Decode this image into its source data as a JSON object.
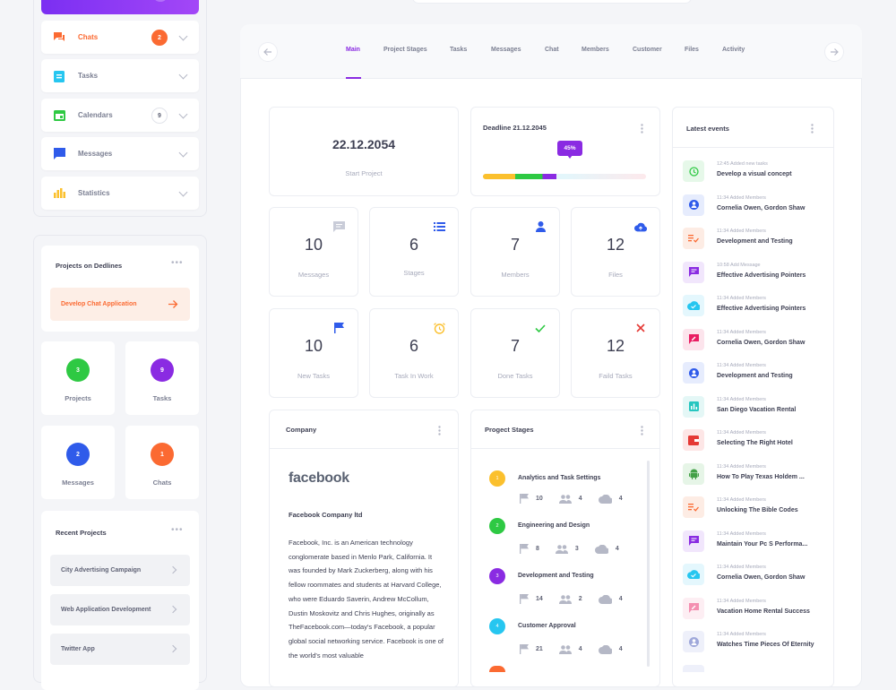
{
  "sidebar": {
    "menu": [
      {
        "label": "Chats",
        "icon": "chat-icon",
        "badge": "2",
        "active": true
      },
      {
        "label": "Tasks",
        "icon": "clipboard-icon"
      },
      {
        "label": "Calendars",
        "icon": "calendar-icon",
        "badge": "9"
      },
      {
        "label": "Messages",
        "icon": "message-icon"
      },
      {
        "label": "Statistics",
        "icon": "bar-chart-icon"
      }
    ],
    "deadlines": {
      "title": "Projects on Dedlines",
      "item": "Develop Chat Application"
    },
    "stats": [
      {
        "label": "Projects",
        "value": "3",
        "color": "#2ec943"
      },
      {
        "label": "Tasks",
        "value": "9",
        "color": "#8a2be2"
      },
      {
        "label": "Messages",
        "value": "2",
        "color": "#2f5bea"
      },
      {
        "label": "Chats",
        "value": "1",
        "color": "#fb6a32"
      }
    ],
    "recent": {
      "title": "Recent Projects",
      "items": [
        "City Advertising Campaign",
        "Web Application Development",
        "Twitter App"
      ]
    }
  },
  "tabs": [
    "Main",
    "Project Stages",
    "Tasks",
    "Messages",
    "Chat",
    "Members",
    "Customer",
    "Files",
    "Activity"
  ],
  "start": {
    "date": "22.12.2054",
    "label": "Start Project"
  },
  "deadline": {
    "title": "Deadline 21.12.2045",
    "progress_label": "45%",
    "progress": 0.45
  },
  "counters": [
    {
      "value": "10",
      "label": "Messages",
      "icon": "chat-bubble-icon"
    },
    {
      "value": "6",
      "label": "Stages",
      "icon": "list-icon"
    },
    {
      "value": "7",
      "label": "Members",
      "icon": "user-icon"
    },
    {
      "value": "12",
      "label": "Files",
      "icon": "cloud-upload-icon"
    },
    {
      "value": "10",
      "label": "New Tasks",
      "icon": "flag-icon"
    },
    {
      "value": "6",
      "label": "Task In Work",
      "icon": "alarm-icon"
    },
    {
      "value": "7",
      "label": "Done Tasks",
      "icon": "check-icon"
    },
    {
      "value": "12",
      "label": "Faild Tasks",
      "icon": "cross-icon"
    }
  ],
  "company": {
    "title": "Company",
    "logo_text": "facebook",
    "name": "Facebook Company ltd",
    "description": "Facebook, Inc. is an American technology conglomerate based in Menlo Park, California. It was founded by Mark Zuckerberg, along with his fellow roommates and students at Harvard College, who were Eduardo Saverin, Andrew McCollum, Dustin Moskovitz and Chris Hughes, originally as TheFacebook.com—today's Facebook, a popular global social networking service. Facebook is one of the world's most valuable"
  },
  "stages": {
    "title": "Progect Stages",
    "items": [
      {
        "num": "1",
        "name": "Analytics and Task Settings",
        "flags": "10",
        "people": "4",
        "files": "4",
        "color": "#fbc02d"
      },
      {
        "num": "2",
        "name": "Engineering and Design",
        "flags": "8",
        "people": "3",
        "files": "4",
        "color": "#2ec943"
      },
      {
        "num": "3",
        "name": "Development and Testing",
        "flags": "14",
        "people": "2",
        "files": "4",
        "color": "#8a2be2"
      },
      {
        "num": "4",
        "name": "Customer Approval",
        "flags": "21",
        "people": "4",
        "files": "4",
        "color": "#26c6f0"
      }
    ]
  },
  "events": {
    "title": "Latest events",
    "items": [
      {
        "meta": "12:45  Added new tasks",
        "title": "Develop a visual concept",
        "color": "#2ec943",
        "bg": "#e6f8e9",
        "icon": "history-icon"
      },
      {
        "meta": "11:34  Added Members",
        "title": "Cornelia Owen, Gordon Shaw",
        "color": "#2f5bea",
        "bg": "#e6ecfd",
        "icon": "person-icon"
      },
      {
        "meta": "11:34  Added Members",
        "title": "Development and Testing",
        "color": "#fb6a32",
        "bg": "#fdece4",
        "icon": "checklist-icon"
      },
      {
        "meta": "10:58  Add Message",
        "title": "Effective Advertising Pointers",
        "color": "#8a2be2",
        "bg": "#f1e6fc",
        "icon": "message-icon"
      },
      {
        "meta": "11:34  Added Members",
        "title": "Effective Advertising Pointers",
        "color": "#26c6f0",
        "bg": "#e4f7fd",
        "icon": "cloud-check-icon"
      },
      {
        "meta": "11:34  Added Members",
        "title": "Cornelia Owen, Gordon Shaw",
        "color": "#e91e63",
        "bg": "#fce4ec",
        "icon": "message-edit-icon"
      },
      {
        "meta": "11:34  Added Members",
        "title": "Development and Testing",
        "color": "#2f5bea",
        "bg": "#e6ecfd",
        "icon": "person-icon"
      },
      {
        "meta": "11:34  Added Members",
        "title": "San Diego Vacation Rental",
        "color": "#26c6c0",
        "bg": "#e4f7f6",
        "icon": "chart-icon"
      },
      {
        "meta": "11:34  Added Members",
        "title": "Selecting The Right Hotel",
        "color": "#e53935",
        "bg": "#fde6e6",
        "icon": "wallet-icon"
      },
      {
        "meta": "11:34  Added Members",
        "title": "How To Play Texas Holdem ...",
        "color": "#43a047",
        "bg": "#e6f5e7",
        "icon": "android-icon"
      },
      {
        "meta": "11:34  Added Members",
        "title": "Unlocking The Bible Codes",
        "color": "#fb6a32",
        "bg": "#fdece4",
        "icon": "checklist-icon"
      },
      {
        "meta": "11:34  Added Members",
        "title": "Maintain Your Pc S Performa...",
        "color": "#8a2be2",
        "bg": "#f1e6fc",
        "icon": "message-icon"
      },
      {
        "meta": "11:34  Added Members",
        "title": "Cornelia Owen, Gordon Shaw",
        "color": "#26c6f0",
        "bg": "#e4f7fd",
        "icon": "cloud-check-icon"
      },
      {
        "meta": "11:34  Added Members",
        "title": "Vacation Home Rental Success",
        "color": "#f48fb1",
        "bg": "#fdeef3",
        "icon": "message-edit-icon"
      },
      {
        "meta": "11:34  Added Members",
        "title": "Watches Time Pieces Of Eternity",
        "color": "#9fa8da",
        "bg": "#eef0fa",
        "icon": "person-icon"
      }
    ]
  }
}
